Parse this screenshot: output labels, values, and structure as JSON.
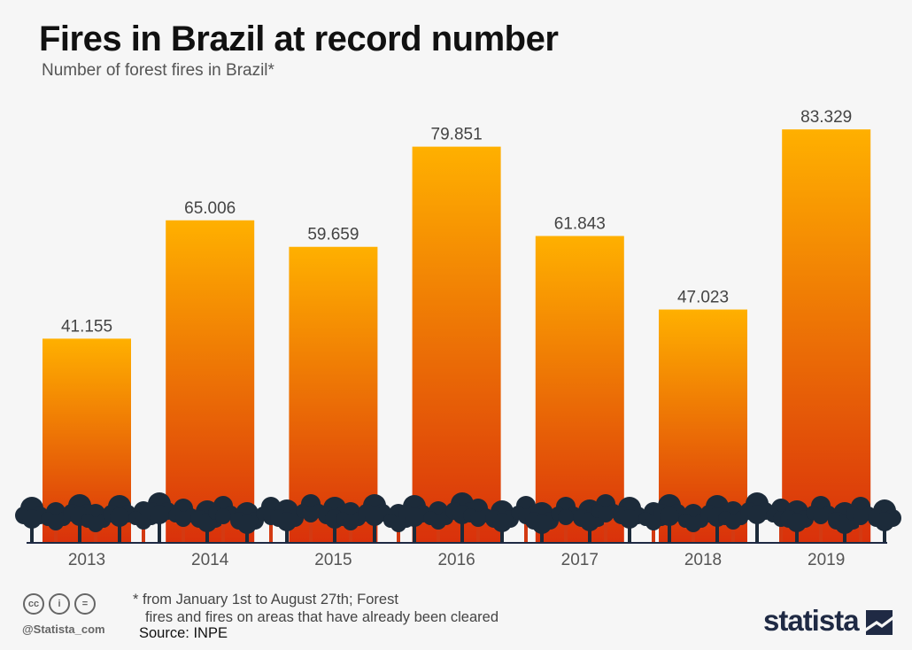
{
  "title": "Fires in Brazil at record number",
  "subtitle": "Number of forest fires in Brazil*",
  "chart_data": {
    "type": "bar",
    "title": "Fires in Brazil at record number",
    "subtitle": "Number of forest fires in Brazil*",
    "categories": [
      "2013",
      "2014",
      "2015",
      "2016",
      "2017",
      "2018",
      "2019"
    ],
    "values": [
      41155,
      65006,
      59659,
      79851,
      61843,
      47023,
      83329
    ],
    "value_labels": [
      "41.155",
      "65.006",
      "59.659",
      "79.851",
      "61.843",
      "47.023",
      "83.329"
    ],
    "ylim": [
      0,
      100000
    ],
    "grid": false,
    "legend": "none",
    "colors": {
      "bar_top": "#ffb000",
      "bar_bottom": "#d9310b",
      "trees": "#1c2b3a",
      "trunks": "#d33a12",
      "axis": "#1f2a44"
    }
  },
  "footer": {
    "note_line1": "* from January 1st to August 27th; Forest",
    "note_line2": "fires and fires on areas that have already been cleared",
    "source": "Source: INPE",
    "handle": "@Statista_com",
    "license_icons": [
      "cc",
      "i",
      "="
    ],
    "brand": "statista"
  }
}
